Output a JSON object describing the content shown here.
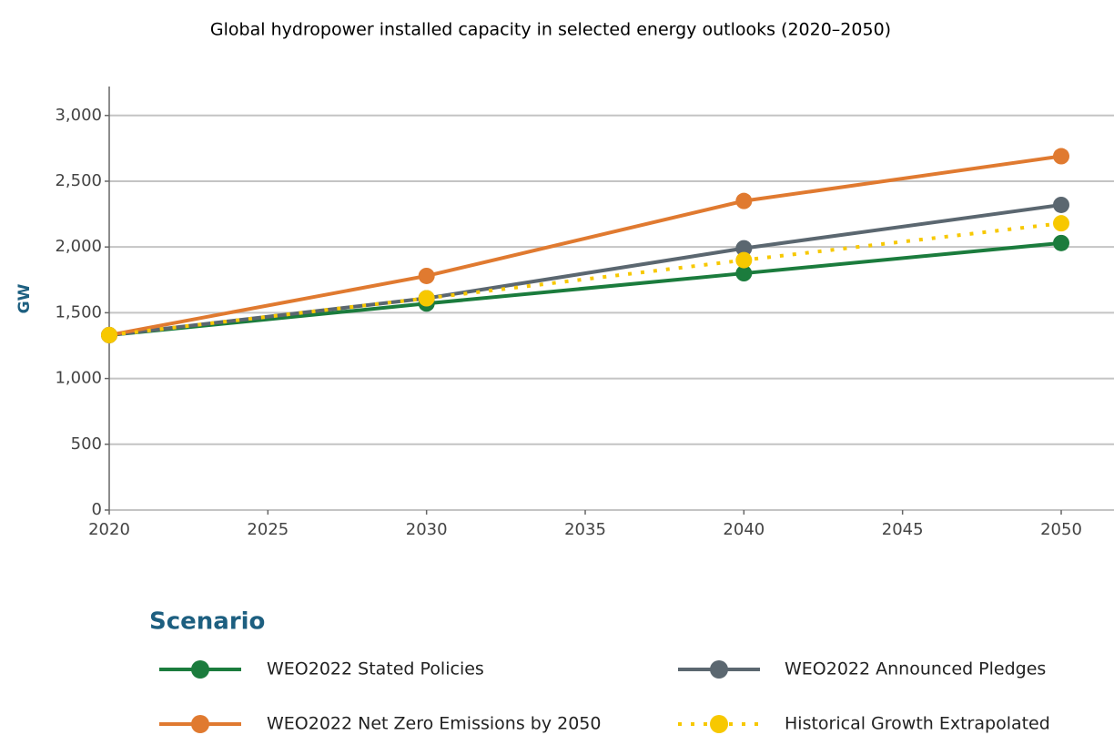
{
  "chart_data": {
    "type": "line",
    "title": "Global hydropower installed capacity in selected energy outlooks (2020–2050)",
    "y_label": "GW",
    "legend_title": "Scenario",
    "x": [
      2020,
      2030,
      2040,
      2050
    ],
    "xlim": [
      2020,
      2050
    ],
    "xticks": [
      2020,
      2025,
      2030,
      2035,
      2040,
      2045,
      2050
    ],
    "ylim": [
      0,
      3220
    ],
    "yticks": [
      0,
      500,
      {
        "value": 1000,
        "label": "1,000"
      },
      {
        "value": 1500,
        "label": "1,500"
      },
      {
        "value": 2000,
        "label": "2,000"
      },
      {
        "value": 2500,
        "label": "2,500"
      },
      {
        "value": 3000,
        "label": "3,000"
      }
    ],
    "grid": true,
    "series": [
      {
        "name": "WEO2022 Stated Policies",
        "color": "#1b7c3d",
        "style": "solid",
        "values": [
          1330,
          1570,
          1800,
          2030
        ]
      },
      {
        "name": "WEO2022 Announced Pledges",
        "color": "#5b6770",
        "style": "solid",
        "values": [
          1330,
          1610,
          1990,
          2320
        ]
      },
      {
        "name": "WEO2022 Net Zero Emissions by 2050",
        "color": "#e07a30",
        "style": "solid",
        "values": [
          1330,
          1780,
          2350,
          2690
        ]
      },
      {
        "name": "Historical Growth Extrapolated",
        "color": "#f7c800",
        "style": "dotted",
        "values": [
          1330,
          1610,
          1900,
          2180
        ]
      }
    ]
  }
}
